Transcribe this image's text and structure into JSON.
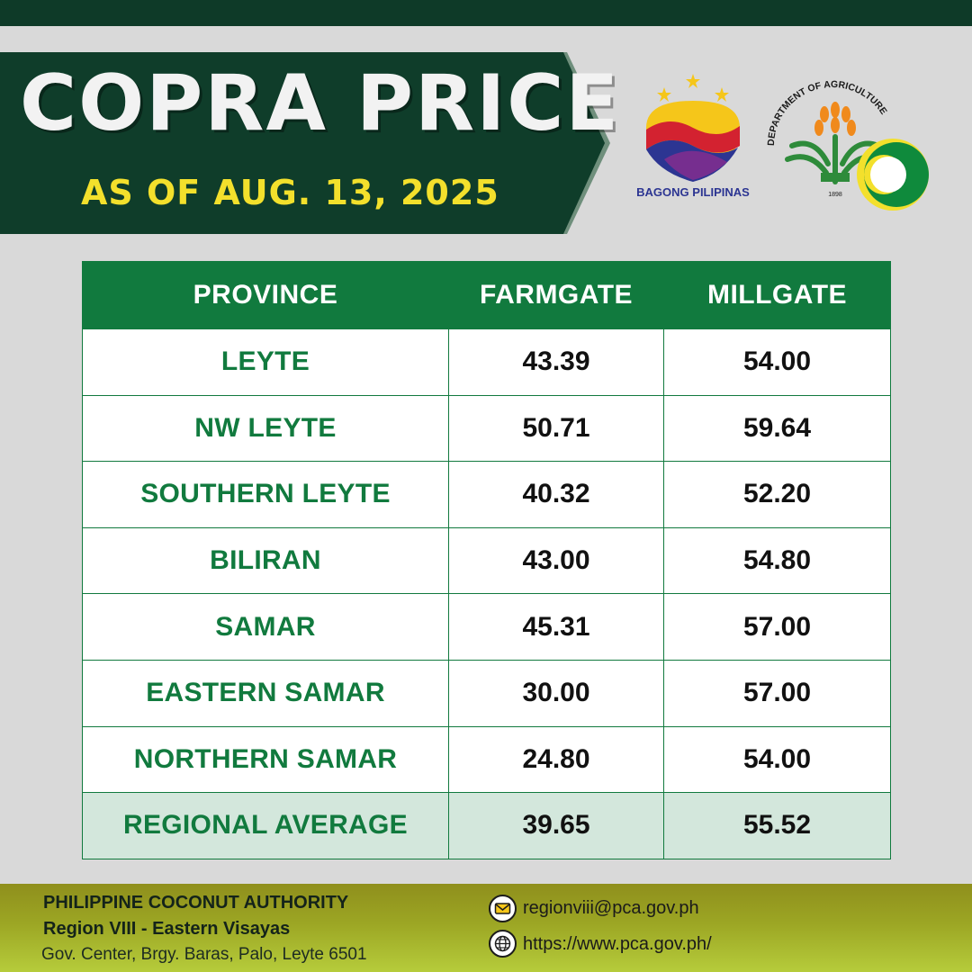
{
  "header": {
    "title": "COPRA PRICE",
    "subtitle": "AS OF AUG. 13, 2025"
  },
  "logos": {
    "bagong_pilipinas": "BAGONG PILIPINAS",
    "department": "DEPARTMENT OF AGRICULTURE",
    "department_year": "1898"
  },
  "table": {
    "columns": [
      "PROVINCE",
      "FARMGATE",
      "MILLGATE"
    ],
    "rows": [
      {
        "province": "LEYTE",
        "farmgate": "43.39",
        "millgate": "54.00"
      },
      {
        "province": "NW LEYTE",
        "farmgate": "50.71",
        "millgate": "59.64"
      },
      {
        "province": "SOUTHERN LEYTE",
        "farmgate": "40.32",
        "millgate": "52.20"
      },
      {
        "province": "BILIRAN",
        "farmgate": "43.00",
        "millgate": "54.80"
      },
      {
        "province": "SAMAR",
        "farmgate": "45.31",
        "millgate": "57.00"
      },
      {
        "province": "EASTERN SAMAR",
        "farmgate": "30.00",
        "millgate": "57.00"
      },
      {
        "province": "NORTHERN SAMAR",
        "farmgate": "24.80",
        "millgate": "54.00"
      }
    ],
    "average": {
      "province": "REGIONAL AVERAGE",
      "farmgate": "39.65",
      "millgate": "55.52"
    }
  },
  "footer": {
    "org_name": "PHILIPPINE COCONUT AUTHORITY",
    "region": "Region VIII - Eastern Visayas",
    "address": "Gov. Center, Brgy. Baras, Palo, Leyte 6501",
    "email": "regionviii@pca.gov.ph",
    "website": "https://www.pca.gov.ph/"
  },
  "colors": {
    "dark_green": "#0e3a28",
    "table_green": "#117a3e",
    "title_yellow": "#f3e02c",
    "average_row_bg": "#d3e7dc"
  },
  "icons": {
    "email": "envelope-icon",
    "website": "globe-icon"
  }
}
